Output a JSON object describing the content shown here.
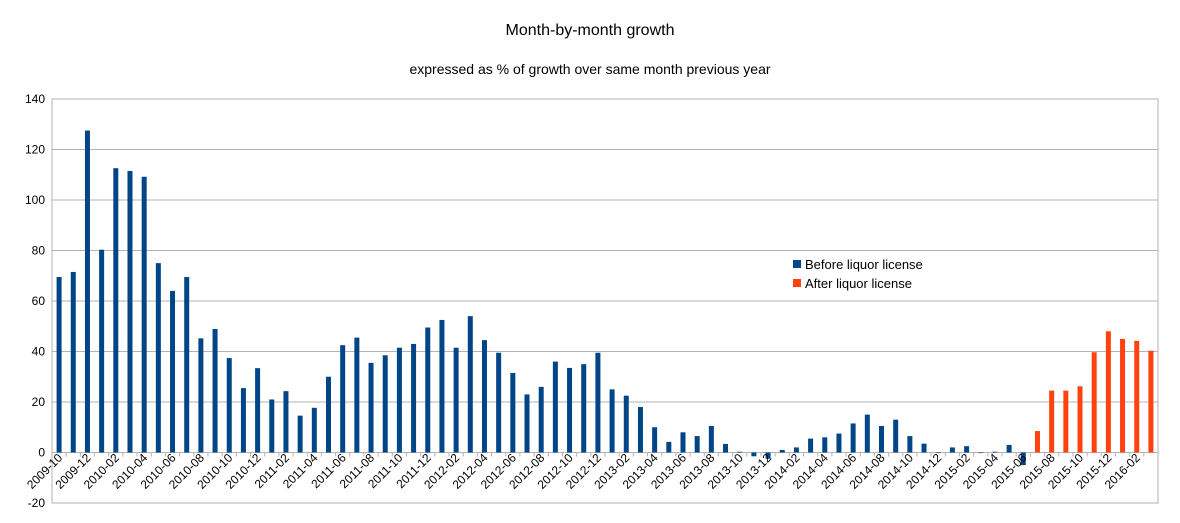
{
  "chart_data": {
    "type": "bar",
    "title": "Month-by-month growth",
    "subtitle": "expressed as % of growth over same month previous year",
    "xlabel": "",
    "ylabel": "",
    "ylim": [
      -20,
      140
    ],
    "yticks": [
      -20,
      0,
      20,
      40,
      60,
      80,
      100,
      120,
      140
    ],
    "grid": true,
    "legend_position": "center-right",
    "categories": [
      "2009-10",
      "2009-11",
      "2009-12",
      "2010-01",
      "2010-02",
      "2010-03",
      "2010-04",
      "2010-05",
      "2010-06",
      "2010-07",
      "2010-08",
      "2010-09",
      "2010-10",
      "2010-11",
      "2010-12",
      "2011-01",
      "2011-02",
      "2011-03",
      "2011-04",
      "2011-05",
      "2011-06",
      "2011-07",
      "2011-08",
      "2011-09",
      "2011-10",
      "2011-11",
      "2011-12",
      "2012-01",
      "2012-02",
      "2012-03",
      "2012-04",
      "2012-05",
      "2012-06",
      "2012-07",
      "2012-08",
      "2012-09",
      "2012-10",
      "2012-11",
      "2012-12",
      "2013-01",
      "2013-02",
      "2013-03",
      "2013-04",
      "2013-05",
      "2013-06",
      "2013-07",
      "2013-08",
      "2013-09",
      "2013-10",
      "2013-11",
      "2013-12",
      "2014-01",
      "2014-02",
      "2014-03",
      "2014-04",
      "2014-05",
      "2014-06",
      "2014-07",
      "2014-08",
      "2014-09",
      "2014-10",
      "2014-11",
      "2014-12",
      "2015-01",
      "2015-02",
      "2015-03",
      "2015-04",
      "2015-05",
      "2015-06",
      "2015-07",
      "2015-08",
      "2015-09",
      "2015-10",
      "2015-11",
      "2015-12",
      "2016-01",
      "2016-02",
      "2016-03"
    ],
    "tick_labels": [
      "2009-10",
      "2009-12",
      "2010-02",
      "2010-04",
      "2010-06",
      "2010-08",
      "2010-10",
      "2010-12",
      "2011-02",
      "2011-04",
      "2011-06",
      "2011-08",
      "2011-10",
      "2011-12",
      "2012-02",
      "2012-04",
      "2012-06",
      "2012-08",
      "2012-10",
      "2012-12",
      "2013-02",
      "2013-04",
      "2013-06",
      "2013-08",
      "2013-10",
      "2013-12",
      "2014-02",
      "2014-04",
      "2014-06",
      "2014-08",
      "2014-10",
      "2014-12",
      "2015-02",
      "2015-04",
      "2015-06",
      "2015-08",
      "2015-10",
      "2015-12",
      "2016-02"
    ],
    "series": [
      {
        "name": "Before liquor license",
        "color": "#004586",
        "values": [
          69.5,
          71.5,
          127.5,
          80.3,
          112.6,
          111.5,
          109.2,
          75.0,
          64.0,
          69.5,
          45.2,
          48.9,
          37.4,
          25.5,
          33.4,
          21.0,
          24.3,
          14.6,
          17.7,
          30.0,
          42.5,
          45.5,
          35.5,
          38.5,
          41.5,
          43.0,
          49.5,
          52.5,
          41.5,
          54.0,
          44.5,
          39.5,
          31.5,
          23.0,
          26.0,
          36.0,
          33.5,
          35.0,
          39.5,
          25.0,
          22.5,
          18.0,
          10.0,
          4.2,
          8.0,
          6.5,
          10.5,
          3.4,
          0.3,
          -1.5,
          -2.5,
          1.0,
          2.0,
          5.5,
          6.0,
          7.5,
          11.5,
          15.0,
          10.5,
          13.0,
          6.5,
          3.5,
          0.0,
          2.0,
          2.5,
          0.0,
          0.3,
          3.0,
          -5.0,
          null,
          null,
          null,
          null,
          null,
          null,
          null,
          null,
          null
        ]
      },
      {
        "name": "After liquor license",
        "color": "#ff420e",
        "values": [
          null,
          null,
          null,
          null,
          null,
          null,
          null,
          null,
          null,
          null,
          null,
          null,
          null,
          null,
          null,
          null,
          null,
          null,
          null,
          null,
          null,
          null,
          null,
          null,
          null,
          null,
          null,
          null,
          null,
          null,
          null,
          null,
          null,
          null,
          null,
          null,
          null,
          null,
          null,
          null,
          null,
          null,
          null,
          null,
          null,
          null,
          null,
          null,
          null,
          null,
          null,
          null,
          null,
          null,
          null,
          null,
          null,
          null,
          null,
          null,
          null,
          null,
          null,
          null,
          null,
          null,
          null,
          null,
          null,
          8.5,
          24.5,
          24.5,
          26.2,
          39.7,
          48.0,
          45.0,
          44.2,
          40.3
        ]
      }
    ]
  }
}
